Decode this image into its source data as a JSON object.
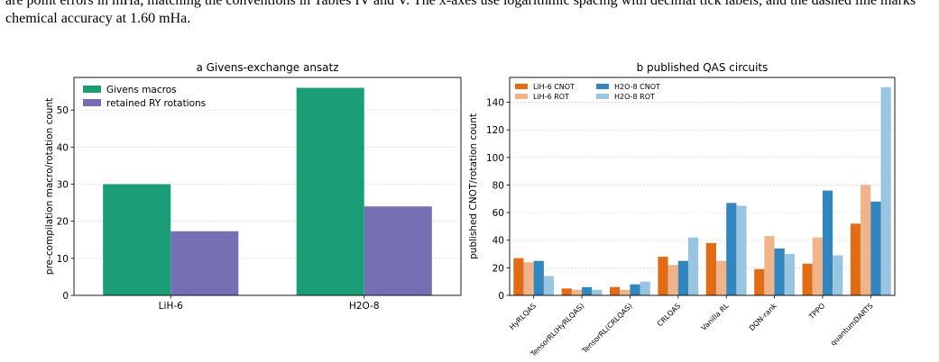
{
  "caption": {
    "line1": "are point errors in mHa, matching the conventions in Tables IV and V. The x-axes use logarithmic spacing with decimal tick labels, and the dashed line marks",
    "line2": "chemical accuracy at 1.60 mHa."
  },
  "chart_data": [
    {
      "type": "bar",
      "title": "a  Givens-exchange ansatz",
      "xlabel": "",
      "ylabel": "pre-compilation macro/rotation count",
      "categories": [
        "LiH-6",
        "H2O-8"
      ],
      "series": [
        {
          "name": "Givens macros",
          "values": [
            30,
            56
          ],
          "color": "#1b9e77"
        },
        {
          "name": "retained RY rotations",
          "values": [
            17.3,
            24
          ],
          "color": "#7570b3"
        }
      ],
      "ylim": [
        0,
        58.8
      ],
      "yticks": [
        0,
        10,
        20,
        30,
        40,
        50
      ],
      "grid": "y",
      "legend": "top-left"
    },
    {
      "type": "bar",
      "title": "b  published QAS circuits",
      "xlabel": "",
      "ylabel": "published CNOT/rotation count",
      "categories": [
        "HyRLQAS",
        "TensorRL(HyRLQAS)",
        "TensorRL(CRLQAS)",
        "CRLQAS",
        "Vanilla RL",
        "DQN-rank",
        "TPPO",
        "quantumDARTS"
      ],
      "series": [
        {
          "name": "LiH-6 CNOT",
          "values": [
            27,
            5,
            6,
            28,
            38,
            19,
            23,
            52
          ],
          "color": "#e06c18"
        },
        {
          "name": "LiH-6 ROT",
          "values": [
            24,
            4,
            4,
            22,
            25,
            43,
            42,
            80
          ],
          "color": "#f0b48a"
        },
        {
          "name": "H2O-8 CNOT",
          "values": [
            25,
            6,
            8,
            25,
            67,
            34,
            76,
            68
          ],
          "color": "#3385bd"
        },
        {
          "name": "H2O-8 ROT",
          "values": [
            14,
            4,
            10,
            42,
            65,
            30,
            29,
            151
          ],
          "color": "#9ac5e0"
        }
      ],
      "ylim": [
        0,
        158
      ],
      "yticks": [
        0,
        20,
        40,
        60,
        80,
        100,
        120,
        140
      ],
      "grid": "y",
      "legend": "top-left"
    }
  ]
}
